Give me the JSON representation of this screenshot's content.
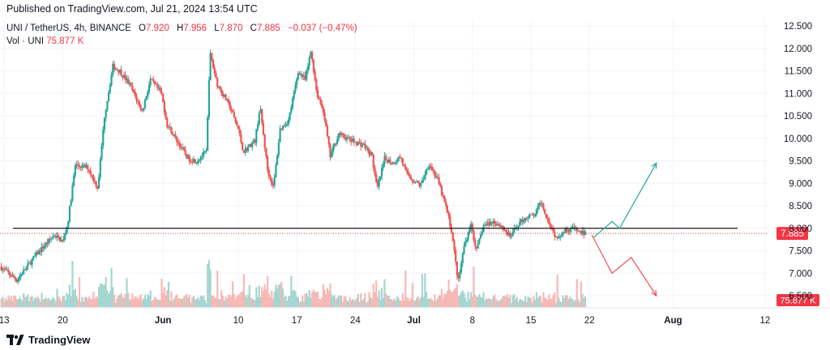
{
  "header": {
    "published": "Published on TradingView.com, Jul 21, 2024 13:54 UTC"
  },
  "legend": {
    "symbol": "UNI / TetherUS, 4h, BINANCE",
    "o_label": "O",
    "o_value": "7.920",
    "h_label": "H",
    "h_value": "7.956",
    "l_label": "L",
    "l_value": "7.870",
    "c_label": "C",
    "c_value": "7.885",
    "change": "−0.037 (−0.47%)",
    "vol_label": "Vol · UNI",
    "vol_value": "75.877 K"
  },
  "footer": {
    "brand": "TradingView",
    "brand_icon": "tradingview-logo-icon"
  },
  "colors": {
    "up": "#26a69a",
    "down": "#ef5350",
    "up_vol": "#a5d6d1",
    "down_vol": "#f7b9b6",
    "level_line": "#131722",
    "price_line": "#f23645",
    "badge": "#f23645"
  },
  "chart_data": {
    "type": "candlestick",
    "symbol": "UNI / TetherUS",
    "interval": "4h",
    "exchange": "BINANCE",
    "ylim": [
      6.5,
      12.5
    ],
    "y_ticks": [
      "12.500",
      "12.000",
      "11.500",
      "11.000",
      "10.500",
      "10.000",
      "9.500",
      "9.000",
      "8.500",
      "8.000",
      "7.500",
      "7.000",
      "6.500"
    ],
    "x_ticks": [
      {
        "label": "13",
        "day": 13
      },
      {
        "label": "20",
        "day": 20
      },
      {
        "label": "Jun",
        "day": 32
      },
      {
        "label": "10",
        "day": 41
      },
      {
        "label": "17",
        "day": 48
      },
      {
        "label": "24",
        "day": 55
      },
      {
        "label": "Jul",
        "day": 62
      },
      {
        "label": "8",
        "day": 69
      },
      {
        "label": "15",
        "day": 76
      },
      {
        "label": "22",
        "day": 83
      },
      {
        "label": "Aug",
        "day": 93
      },
      {
        "label": "12",
        "day": 104
      }
    ],
    "x_range_days": [
      12.5,
      104.4
    ],
    "last_price": "7.885",
    "last_volume": "75.877 K",
    "horizontal_level": 8.0,
    "price_path": [
      {
        "day": 12.5,
        "price": 7.15
      },
      {
        "day": 14.5,
        "price": 6.85
      },
      {
        "day": 17,
        "price": 7.45
      },
      {
        "day": 19,
        "price": 7.85
      },
      {
        "day": 20,
        "price": 7.7
      },
      {
        "day": 20.6,
        "price": 8.1
      },
      {
        "day": 21.5,
        "price": 9.4
      },
      {
        "day": 23,
        "price": 9.35
      },
      {
        "day": 24.2,
        "price": 8.9
      },
      {
        "day": 25,
        "price": 10.5
      },
      {
        "day": 26,
        "price": 11.6
      },
      {
        "day": 26.8,
        "price": 11.5
      },
      {
        "day": 28,
        "price": 11.2
      },
      {
        "day": 29.5,
        "price": 10.6
      },
      {
        "day": 30.5,
        "price": 11.3
      },
      {
        "day": 31.8,
        "price": 11.0
      },
      {
        "day": 32.5,
        "price": 10.3
      },
      {
        "day": 34,
        "price": 9.85
      },
      {
        "day": 35,
        "price": 9.55
      },
      {
        "day": 36,
        "price": 9.5
      },
      {
        "day": 37.2,
        "price": 9.7
      },
      {
        "day": 37.6,
        "price": 11.9
      },
      {
        "day": 38.5,
        "price": 11.2
      },
      {
        "day": 40,
        "price": 10.7
      },
      {
        "day": 41,
        "price": 10.2
      },
      {
        "day": 41.6,
        "price": 9.7
      },
      {
        "day": 43,
        "price": 9.95
      },
      {
        "day": 43.6,
        "price": 10.7
      },
      {
        "day": 44.5,
        "price": 9.3
      },
      {
        "day": 45.2,
        "price": 8.9
      },
      {
        "day": 46,
        "price": 10.2
      },
      {
        "day": 47,
        "price": 10.4
      },
      {
        "day": 48.2,
        "price": 11.5
      },
      {
        "day": 49,
        "price": 11.3
      },
      {
        "day": 49.7,
        "price": 11.95
      },
      {
        "day": 50.4,
        "price": 11.0
      },
      {
        "day": 51.2,
        "price": 10.6
      },
      {
        "day": 52,
        "price": 9.6
      },
      {
        "day": 53,
        "price": 10.1
      },
      {
        "day": 54.5,
        "price": 9.95
      },
      {
        "day": 56,
        "price": 9.85
      },
      {
        "day": 57,
        "price": 9.6
      },
      {
        "day": 57.6,
        "price": 8.85
      },
      {
        "day": 58.5,
        "price": 9.55
      },
      {
        "day": 59.5,
        "price": 9.45
      },
      {
        "day": 60.4,
        "price": 9.6
      },
      {
        "day": 61,
        "price": 9.25
      },
      {
        "day": 62,
        "price": 9.05
      },
      {
        "day": 62.8,
        "price": 8.95
      },
      {
        "day": 63.8,
        "price": 9.45
      },
      {
        "day": 64.8,
        "price": 9.1
      },
      {
        "day": 65.8,
        "price": 8.5
      },
      {
        "day": 66.5,
        "price": 7.95
      },
      {
        "day": 67.3,
        "price": 6.8
      },
      {
        "day": 68,
        "price": 7.6
      },
      {
        "day": 68.8,
        "price": 8.1
      },
      {
        "day": 69.5,
        "price": 7.5
      },
      {
        "day": 70.3,
        "price": 8.05
      },
      {
        "day": 71.5,
        "price": 8.15
      },
      {
        "day": 72.5,
        "price": 8.05
      },
      {
        "day": 73.5,
        "price": 7.8
      },
      {
        "day": 74.5,
        "price": 8.1
      },
      {
        "day": 75.5,
        "price": 8.25
      },
      {
        "day": 76.5,
        "price": 8.3
      },
      {
        "day": 77.2,
        "price": 8.6
      },
      {
        "day": 78,
        "price": 8.2
      },
      {
        "day": 79,
        "price": 7.8
      },
      {
        "day": 80,
        "price": 7.95
      },
      {
        "day": 81,
        "price": 8.0
      },
      {
        "day": 82,
        "price": 7.9
      },
      {
        "day": 82.6,
        "price": 7.885
      }
    ],
    "scenario_up": [
      {
        "day": 83.5,
        "price": 7.8
      },
      {
        "day": 85.7,
        "price": 8.15
      },
      {
        "day": 86.6,
        "price": 8.0
      },
      {
        "day": 91,
        "price": 9.45
      }
    ],
    "scenario_down": [
      {
        "day": 83.3,
        "price": 7.85
      },
      {
        "day": 85.7,
        "price": 7.0
      },
      {
        "day": 88,
        "price": 7.35
      },
      {
        "day": 91,
        "price": 6.5
      }
    ]
  }
}
